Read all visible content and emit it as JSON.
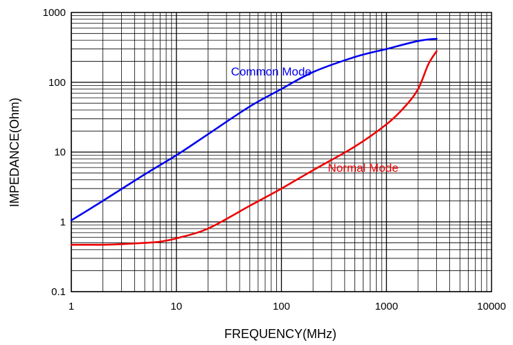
{
  "chart_data": {
    "type": "line",
    "xlabel": "FREQUENCY(MHz)",
    "ylabel": "IMPEDANCE(Ohm)",
    "x_scale": "log",
    "y_scale": "log",
    "xlim": [
      1,
      10000
    ],
    "ylim": [
      0.1,
      1000
    ],
    "x_ticks": [
      {
        "value": 1,
        "label": "1"
      },
      {
        "value": 10,
        "label": "10"
      },
      {
        "value": 100,
        "label": "100"
      },
      {
        "value": 1000,
        "label": "1000"
      },
      {
        "value": 10000,
        "label": "10000"
      }
    ],
    "y_ticks": [
      {
        "value": 0.1,
        "label": "0.1"
      },
      {
        "value": 1,
        "label": "1"
      },
      {
        "value": 10,
        "label": "10"
      },
      {
        "value": 100,
        "label": "100"
      },
      {
        "value": 1000,
        "label": "1000"
      }
    ],
    "grid": true,
    "series": [
      {
        "name": "Common Mode",
        "color": "#0000ee",
        "label_at": {
          "x": 80,
          "y": 125
        },
        "x": [
          1,
          2,
          5,
          10,
          20,
          50,
          100,
          200,
          500,
          1000,
          2000,
          3000
        ],
        "y": [
          1.05,
          2.0,
          4.8,
          9.0,
          18,
          45,
          80,
          140,
          230,
          300,
          390,
          420
        ]
      },
      {
        "name": "Normal Mode",
        "color": "#ee0000",
        "label_at": {
          "x": 600,
          "y": 5.2
        },
        "x": [
          1,
          2,
          3,
          5,
          7,
          10,
          20,
          50,
          100,
          200,
          500,
          1000,
          1500,
          2000,
          2500,
          3000
        ],
        "y": [
          0.47,
          0.47,
          0.48,
          0.5,
          0.52,
          0.58,
          0.8,
          1.7,
          3.0,
          5.5,
          12,
          25,
          45,
          80,
          180,
          280
        ]
      }
    ]
  }
}
